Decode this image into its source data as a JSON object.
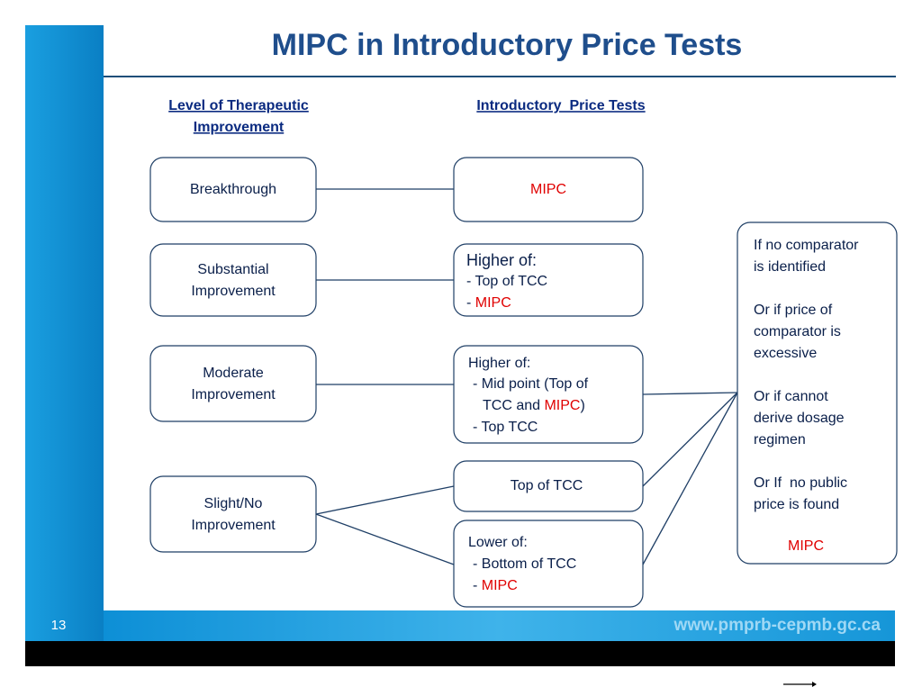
{
  "header": {
    "title": "MIPC in Introductory Price Tests",
    "left_heading": "Level of Therapeutic Improvement",
    "right_heading": "Introductory  Price Tests"
  },
  "nodes": [
    {
      "lines": [
        [
          {
            "text": "Breakthrough"
          }
        ]
      ]
    },
    {
      "lines": [
        [
          {
            "text": "Substantial"
          }
        ],
        [
          {
            "text": "Improvement"
          }
        ]
      ]
    },
    {
      "lines": [
        [
          {
            "text": "Moderate"
          }
        ],
        [
          {
            "text": "Improvement"
          }
        ]
      ]
    },
    {
      "lines": [
        [
          {
            "text": "Slight/No"
          }
        ],
        [
          {
            "text": "Improvement"
          }
        ]
      ]
    },
    {
      "lines": [
        [
          {
            "text": "MIPC",
            "highlight": true
          }
        ]
      ]
    },
    {
      "lines": [
        [
          {
            "text": "Higher of:"
          }
        ],
        [
          {
            "text": "- Top of TCC"
          }
        ],
        [
          {
            "text": "- "
          },
          {
            "text": "MIPC",
            "highlight": true
          }
        ]
      ]
    },
    {
      "lines": [
        [
          {
            "text": "Higher of:"
          }
        ],
        [
          {
            "text": "- Mid point (Top of"
          }
        ],
        [
          {
            "text": "TCC and "
          },
          {
            "text": "MIPC",
            "highlight": true
          },
          {
            "text": ")"
          }
        ],
        [
          {
            "text": "- Top TCC"
          }
        ]
      ]
    },
    {
      "lines": [
        [
          {
            "text": "Top of TCC"
          }
        ]
      ]
    },
    {
      "lines": [
        [
          {
            "text": "Lower of:"
          }
        ],
        [
          {
            "text": "- Bottom of TCC"
          }
        ],
        [
          {
            "text": "- "
          },
          {
            "text": "MIPC",
            "highlight": true
          }
        ]
      ]
    },
    {
      "lines": [
        [
          {
            "text": "If no comparator"
          }
        ],
        [
          {
            "text": "is identified"
          }
        ],
        [
          {
            "text": "Or if price of"
          }
        ],
        [
          {
            "text": "comparator is"
          }
        ],
        [
          {
            "text": "excessive"
          }
        ],
        [
          {
            "text": "Or if cannot"
          }
        ],
        [
          {
            "text": "derive dosage"
          }
        ],
        [
          {
            "text": "regimen"
          }
        ],
        [
          {
            "text": "Or If  no public"
          }
        ],
        [
          {
            "text": "price is found"
          }
        ],
        [
          {
            "text": "MIPC",
            "highlight": true
          }
        ]
      ]
    }
  ],
  "footer": {
    "page_number": "13",
    "url": "www.pmprb-cepmb.gc.ca"
  }
}
